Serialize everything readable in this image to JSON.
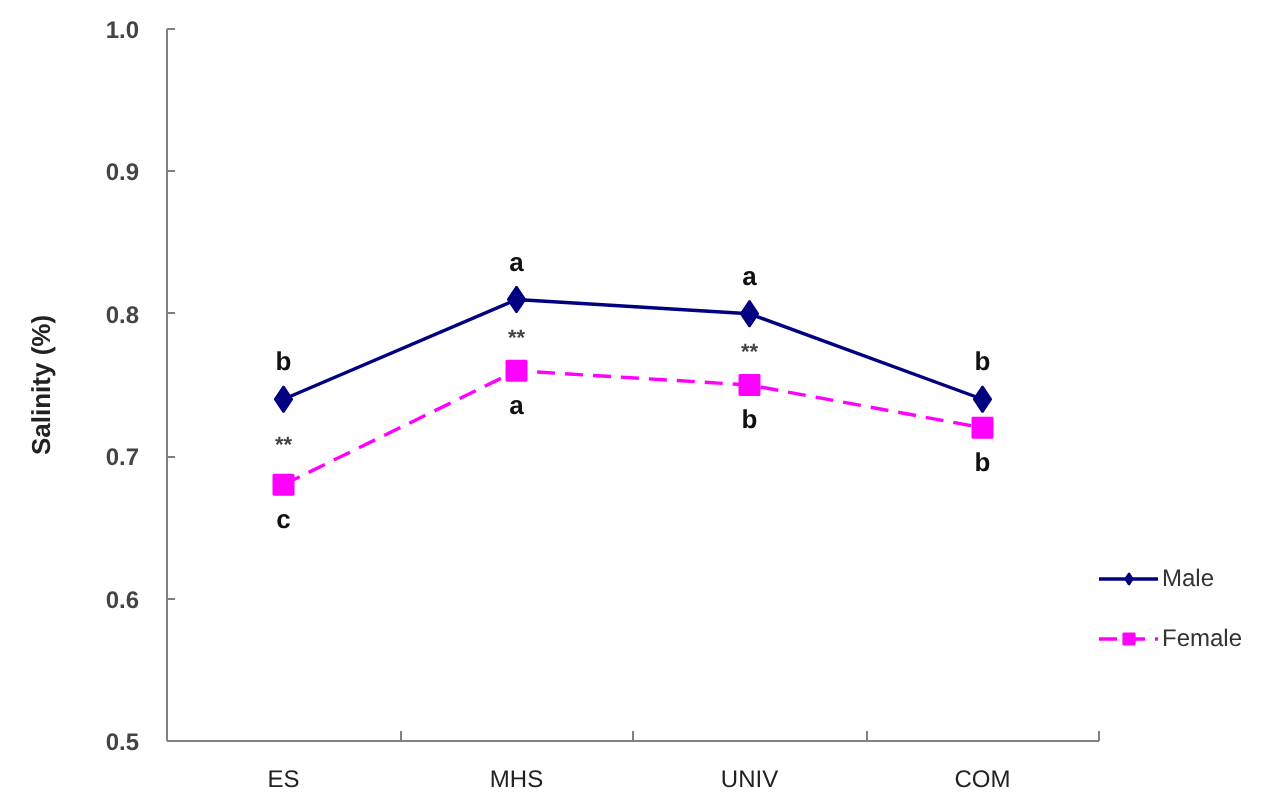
{
  "chart_data": {
    "type": "line",
    "ylabel": "Salinity (%)",
    "categories": [
      "ES",
      "MHS",
      "UNIV",
      "COM"
    ],
    "series": [
      {
        "name": "Male",
        "color": "#000080",
        "values": [
          0.74,
          0.81,
          0.8,
          0.74
        ],
        "marker": "diamond",
        "line_style": "solid"
      },
      {
        "name": "Female",
        "color": "#ff00ff",
        "values": [
          0.68,
          0.76,
          0.75,
          0.72
        ],
        "marker": "square",
        "line_style": "dashed"
      }
    ],
    "ylim": [
      0.5,
      1.0
    ],
    "yticks": [
      0.5,
      0.6,
      0.7,
      0.8,
      0.9,
      {
        "value": 1,
        "label": "1.0"
      }
    ],
    "grid": false,
    "legend": "right",
    "annotations": [
      {
        "text": "b",
        "x": "ES",
        "y": 0.74
      },
      {
        "text": "a",
        "x": "MHS",
        "y": 0.81
      },
      {
        "text": "a",
        "x": "UNIV",
        "y": 0.8
      },
      {
        "text": "b",
        "x": "COM",
        "y": 0.74
      },
      {
        "text": "c",
        "x": "ES",
        "y": 0.68
      },
      {
        "text": "a",
        "x": "MHS",
        "y": 0.76
      },
      {
        "text": "b",
        "x": "UNIV",
        "y": 0.75
      },
      {
        "text": "b",
        "x": "COM",
        "y": 0.72
      },
      "**",
      "**",
      "**"
    ]
  }
}
